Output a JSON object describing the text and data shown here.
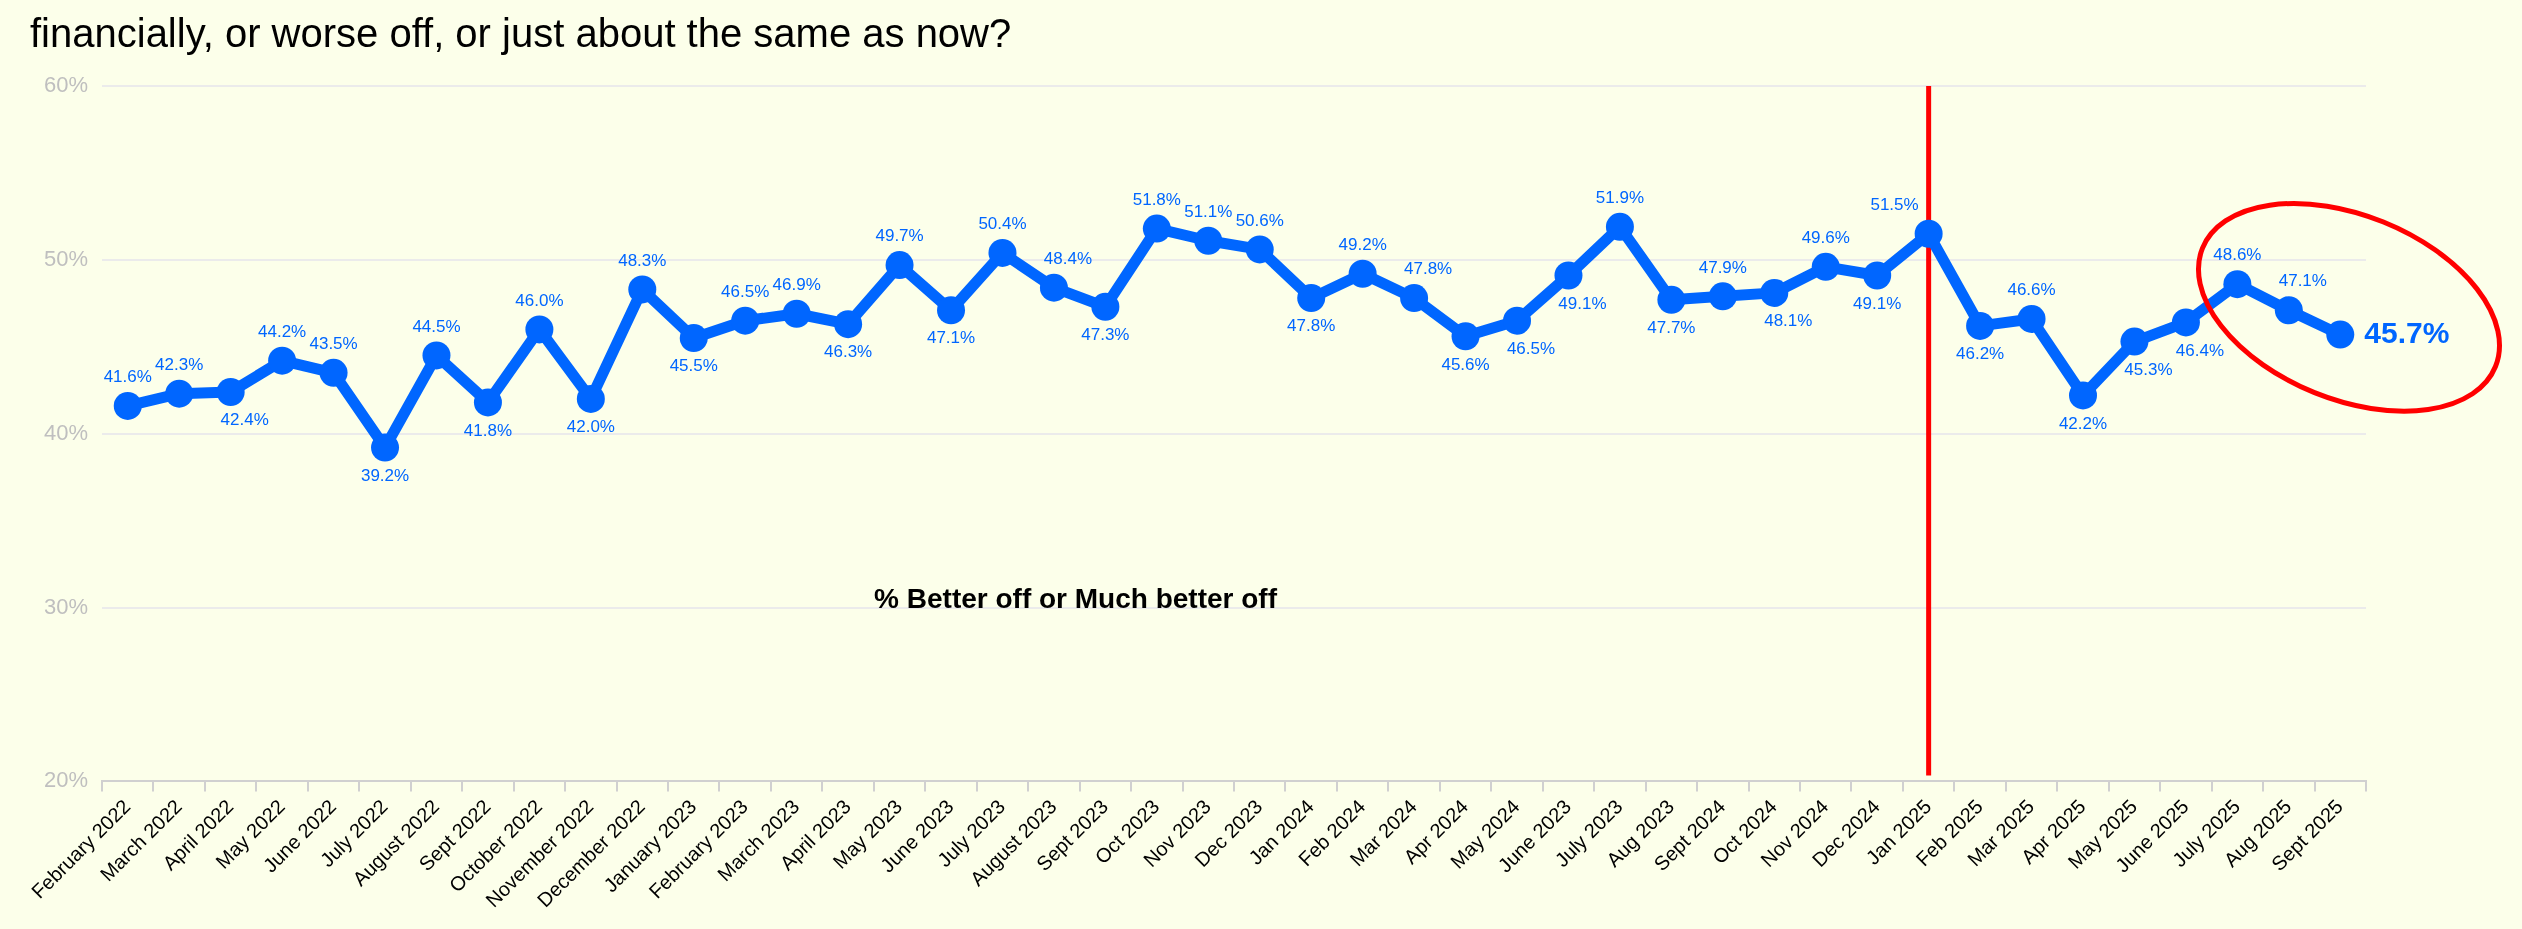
{
  "chart_data": {
    "type": "line",
    "title": "financially, or worse off, or just about the same as now?",
    "categories": [
      "February 2022",
      "March 2022",
      "April 2022",
      "May 2022",
      "June 2022",
      "July 2022",
      "August 2022",
      "Sept 2022",
      "October 2022",
      "November 2022",
      "December 2022",
      "January 2023",
      "February 2023",
      "March 2023",
      "April 2023",
      "May 2023",
      "June 2023",
      "July 2023",
      "August 2023",
      "Sept 2023",
      "Oct 2023",
      "Nov 2023",
      "Dec 2023",
      "Jan 2024",
      "Feb 2024",
      "Mar 2024",
      "Apr 2024",
      "May 2024",
      "June 2023",
      "July 2023",
      "Aug 2023",
      "Sept 2024",
      "Oct 2024",
      "Nov 2024",
      "Dec 2024",
      "Jan 2025",
      "Feb 2025",
      "Mar 2025",
      "Apr 2025",
      "May 2025",
      "June 2025",
      "July 2025",
      "Aug 2025",
      "Sept 2025"
    ],
    "values": [
      41.6,
      42.3,
      42.4,
      44.2,
      43.5,
      39.2,
      44.5,
      41.8,
      46.0,
      42.0,
      48.3,
      45.5,
      46.5,
      46.9,
      46.3,
      49.7,
      47.1,
      50.4,
      48.4,
      47.3,
      51.8,
      51.1,
      50.6,
      47.8,
      49.2,
      47.8,
      45.6,
      46.5,
      49.1,
      51.9,
      47.7,
      47.9,
      48.1,
      49.6,
      49.1,
      51.5,
      46.2,
      46.6,
      42.2,
      45.3,
      46.4,
      48.6,
      47.1,
      45.7
    ],
    "value_labels": [
      "41.6%",
      "42.3%",
      "42.4%",
      "44.2%",
      "43.5%",
      "39.2%",
      "44.5%",
      "41.8%",
      "46.0%",
      "42.0%",
      "48.3%",
      "45.5%",
      "46.5%",
      "46.9%",
      "46.3%",
      "49.7%",
      "47.1%",
      "50.4%",
      "48.4%",
      "47.3%",
      "51.8%",
      "51.1%",
      "50.6%",
      "47.8%",
      "49.2%",
      "47.8%",
      "45.6%",
      "46.5%",
      "49.1%",
      "51.9%",
      "47.7%",
      "47.9%",
      "48.1%",
      "49.6%",
      "49.1%",
      "51.5%",
      "46.2%",
      "46.6%",
      "42.2%",
      "45.3%",
      "46.4%",
      "48.6%",
      "47.1%",
      "45.7%"
    ],
    "color": "#0066ff",
    "marker": "circle",
    "ylim": [
      20,
      60
    ],
    "yticks": [
      {
        "value": 20,
        "label": "20%"
      },
      {
        "value": 30,
        "label": "30%"
      },
      {
        "value": 40,
        "label": "40%"
      },
      {
        "value": 50,
        "label": "50%"
      },
      {
        "value": 60,
        "label": "60%"
      }
    ],
    "grid": "y",
    "ref_lines": [
      {
        "axis": "x",
        "value": "Jan 2025",
        "color": "#ff0000"
      }
    ],
    "annotations": [
      "% Better off or Much better off"
    ]
  }
}
